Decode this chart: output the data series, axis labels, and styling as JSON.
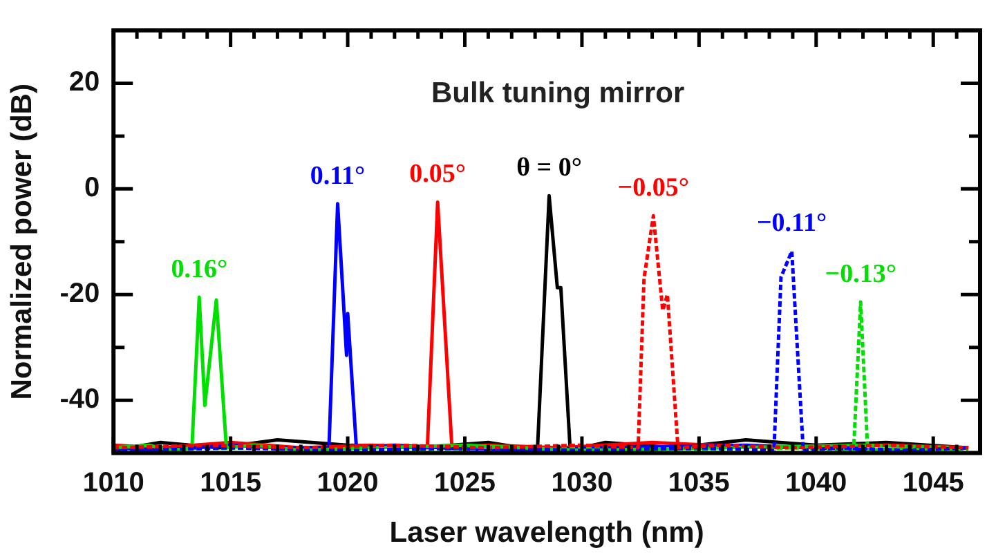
{
  "chart_data": {
    "type": "line",
    "title": "Bulk tuning mirror",
    "xlabel": "Laser wavelength (nm)",
    "ylabel": "Normalized power (dB)",
    "xlim": [
      1010,
      1047
    ],
    "ylim": [
      -50,
      30
    ],
    "xticks": [
      1010,
      {
        "value": 1011,
        "label": null
      },
      {
        "value": 1012,
        "label": null
      },
      {
        "value": 1013,
        "label": null
      },
      {
        "value": 1014,
        "label": null
      },
      1015,
      {
        "value": 1016,
        "label": null
      },
      {
        "value": 1017,
        "label": null
      },
      {
        "value": 1018,
        "label": null
      },
      {
        "value": 1019,
        "label": null
      },
      1020,
      {
        "value": 1021,
        "label": null
      },
      {
        "value": 1022,
        "label": null
      },
      {
        "value": 1023,
        "label": null
      },
      {
        "value": 1024,
        "label": null
      },
      1025,
      {
        "value": 1026,
        "label": null
      },
      {
        "value": 1027,
        "label": null
      },
      {
        "value": 1028,
        "label": null
      },
      {
        "value": 1029,
        "label": null
      },
      1030,
      {
        "value": 1031,
        "label": null
      },
      {
        "value": 1032,
        "label": null
      },
      {
        "value": 1033,
        "label": null
      },
      {
        "value": 1034,
        "label": null
      },
      1035,
      {
        "value": 1036,
        "label": null
      },
      {
        "value": 1037,
        "label": null
      },
      {
        "value": 1038,
        "label": null
      },
      {
        "value": 1039,
        "label": null
      },
      1040,
      {
        "value": 1041,
        "label": null
      },
      {
        "value": 1042,
        "label": null
      },
      {
        "value": 1043,
        "label": null
      },
      {
        "value": 1044,
        "label": null
      },
      1045,
      {
        "value": 1046,
        "label": null
      }
    ],
    "yticks": [
      -40,
      {
        "value": -30,
        "label": null
      },
      -20,
      {
        "value": -10,
        "label": null
      },
      0,
      {
        "value": 10,
        "label": null
      },
      20
    ],
    "grid": false,
    "legend": false,
    "marker": "none",
    "series": [
      {
        "name": "0.16°",
        "color": "#00e000",
        "line_style": "solid",
        "x": [
          1010,
          1011.5,
          1012.5,
          1013.35,
          1013.66,
          1013.9,
          1014.39,
          1014.82,
          1016,
          1018,
          1021,
          1025,
          1030,
          1036,
          1042,
          1046.5
        ],
        "values": [
          -49,
          -48.5,
          -49.5,
          -49,
          -20.5,
          -41,
          -21,
          -49,
          -48.5,
          -49.5,
          -49,
          -48.5,
          -49.5,
          -49,
          -48.5,
          -49
        ]
      },
      {
        "name": "0.11°",
        "color": "#0000ff",
        "line_style": "solid",
        "x": [
          1010,
          1012,
          1015,
          1017,
          1019.2,
          1019.57,
          1019.8,
          1019.95,
          1020.0,
          1020.37,
          1022,
          1026,
          1031,
          1037,
          1043,
          1046.5
        ],
        "values": [
          -49,
          -49.5,
          -48.5,
          -49,
          -49,
          -2.8,
          -20,
          -31.5,
          -23.6,
          -49,
          -48.5,
          -49.5,
          -49,
          -48.5,
          -49.5,
          -49
        ]
      },
      {
        "name": "0.05°",
        "color": "#ff0000",
        "line_style": "solid",
        "x": [
          1010,
          1012,
          1015,
          1018,
          1021,
          1023.4,
          1023.84,
          1024.45,
          1026,
          1029,
          1033,
          1038,
          1043,
          1046.5
        ],
        "values": [
          -48.5,
          -49,
          -48,
          -49,
          -48.5,
          -49,
          -2.5,
          -49,
          -48.5,
          -49,
          -48,
          -49,
          -48.5,
          -49
        ]
      },
      {
        "name": "θ = 0°",
        "color": "#000000",
        "line_style": "solid",
        "x": [
          1010,
          1012,
          1014.5,
          1017,
          1020,
          1023,
          1026,
          1028.1,
          1028.6,
          1028.95,
          1029.1,
          1029.5,
          1031,
          1034,
          1037,
          1040,
          1043,
          1046.5
        ],
        "values": [
          -49.5,
          -48,
          -49,
          -47.5,
          -48.5,
          -49,
          -48,
          -49.5,
          -1.3,
          -18.7,
          -18.7,
          -49.5,
          -48,
          -49,
          -47.5,
          -48.5,
          -48,
          -49
        ]
      },
      {
        "name": "−0.05°",
        "color": "#ff0000",
        "line_style": "dashed",
        "x": [
          1010,
          1014,
          1018,
          1022,
          1026,
          1030,
          1032.4,
          1032.65,
          1033.05,
          1033.45,
          1033.65,
          1034.1,
          1036,
          1039,
          1043,
          1046.5
        ],
        "values": [
          -49,
          -48.5,
          -49,
          -48.5,
          -49,
          -48.5,
          -49,
          -17,
          -5.1,
          -23,
          -20,
          -49,
          -48.5,
          -49,
          -48.5,
          -49
        ]
      },
      {
        "name": "−0.11°",
        "color": "#0000ff",
        "line_style": "dashed",
        "x": [
          1010,
          1015,
          1020,
          1025,
          1030,
          1035,
          1038.2,
          1038.5,
          1038.96,
          1039.45,
          1041,
          1044,
          1046.5
        ],
        "values": [
          -49.5,
          -49,
          -49.5,
          -49,
          -49.5,
          -49,
          -49.5,
          -16.7,
          -11.8,
          -49.5,
          -49,
          -49.5,
          -49
        ]
      },
      {
        "name": "−0.13°",
        "color": "#00e000",
        "line_style": "dashed",
        "x": [
          1010,
          1016,
          1022,
          1028,
          1034,
          1039,
          1041.6,
          1041.9,
          1042.2,
          1044,
          1046.5
        ],
        "values": [
          -49.5,
          -49,
          -49.5,
          -49,
          -49.5,
          -49,
          -49.5,
          -21.4,
          -49.5,
          -49,
          -49.5
        ]
      }
    ]
  }
}
